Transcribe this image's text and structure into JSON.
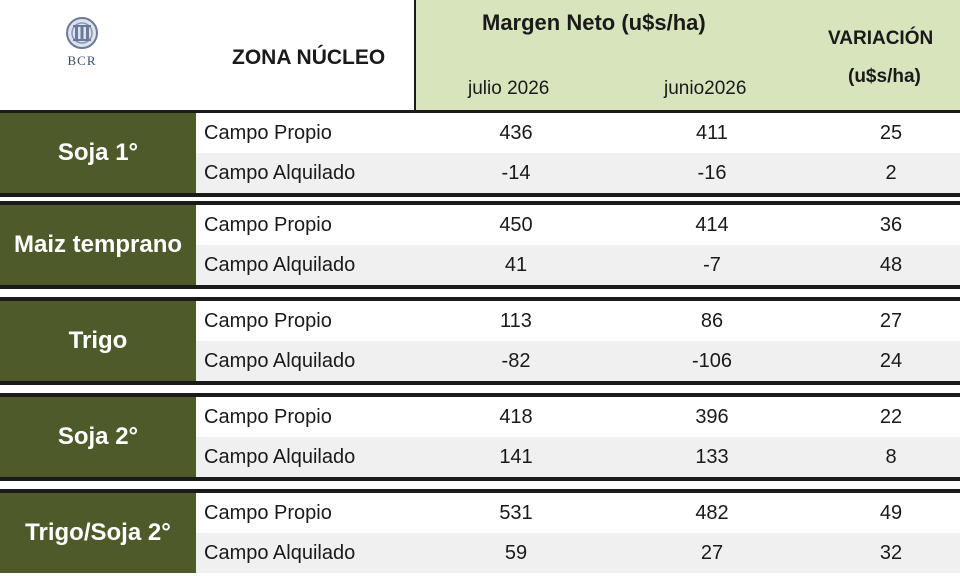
{
  "header": {
    "logo_text": "BCR",
    "logo_icon": "bcr-emblem-icon",
    "zona": "ZONA NÚCLEO",
    "margen": "Margen Neto (u$s/ha)",
    "variacion": "VARIACIÓN",
    "variacion_unit": "(u$s/ha)",
    "col_julio": "julio 2026",
    "col_junio": "junio2026"
  },
  "colors": {
    "crop_bg": "#4f5a2a",
    "header_green": "#d8e4bc",
    "row_alt": "#f0f0f0"
  },
  "rows": [
    {
      "crop": "Soja 1°",
      "propio": {
        "label": "Campo Propio",
        "jul": "436",
        "jun": "411",
        "var": "25"
      },
      "alquilado": {
        "label": "Campo Alquilado",
        "jul": "-14",
        "jun": "-16",
        "var": "2"
      }
    },
    {
      "crop": "Maiz temprano",
      "propio": {
        "label": "Campo Propio",
        "jul": "450",
        "jun": "414",
        "var": "36"
      },
      "alquilado": {
        "label": "Campo Alquilado",
        "jul": "41",
        "jun": "-7",
        "var": "48"
      }
    },
    {
      "crop": "Trigo",
      "propio": {
        "label": "Campo Propio",
        "jul": "113",
        "jun": "86",
        "var": "27"
      },
      "alquilado": {
        "label": "Campo Alquilado",
        "jul": "-82",
        "jun": "-106",
        "var": "24"
      }
    },
    {
      "crop": "Soja 2°",
      "propio": {
        "label": "Campo Propio",
        "jul": "418",
        "jun": "396",
        "var": "22"
      },
      "alquilado": {
        "label": "Campo Alquilado",
        "jul": "141",
        "jun": "133",
        "var": "8"
      }
    },
    {
      "crop": "Trigo/Soja 2°",
      "propio": {
        "label": "Campo Propio",
        "jul": "531",
        "jun": "482",
        "var": "49"
      },
      "alquilado": {
        "label": "Campo Alquilado",
        "jul": "59",
        "jun": "27",
        "var": "32"
      }
    }
  ]
}
